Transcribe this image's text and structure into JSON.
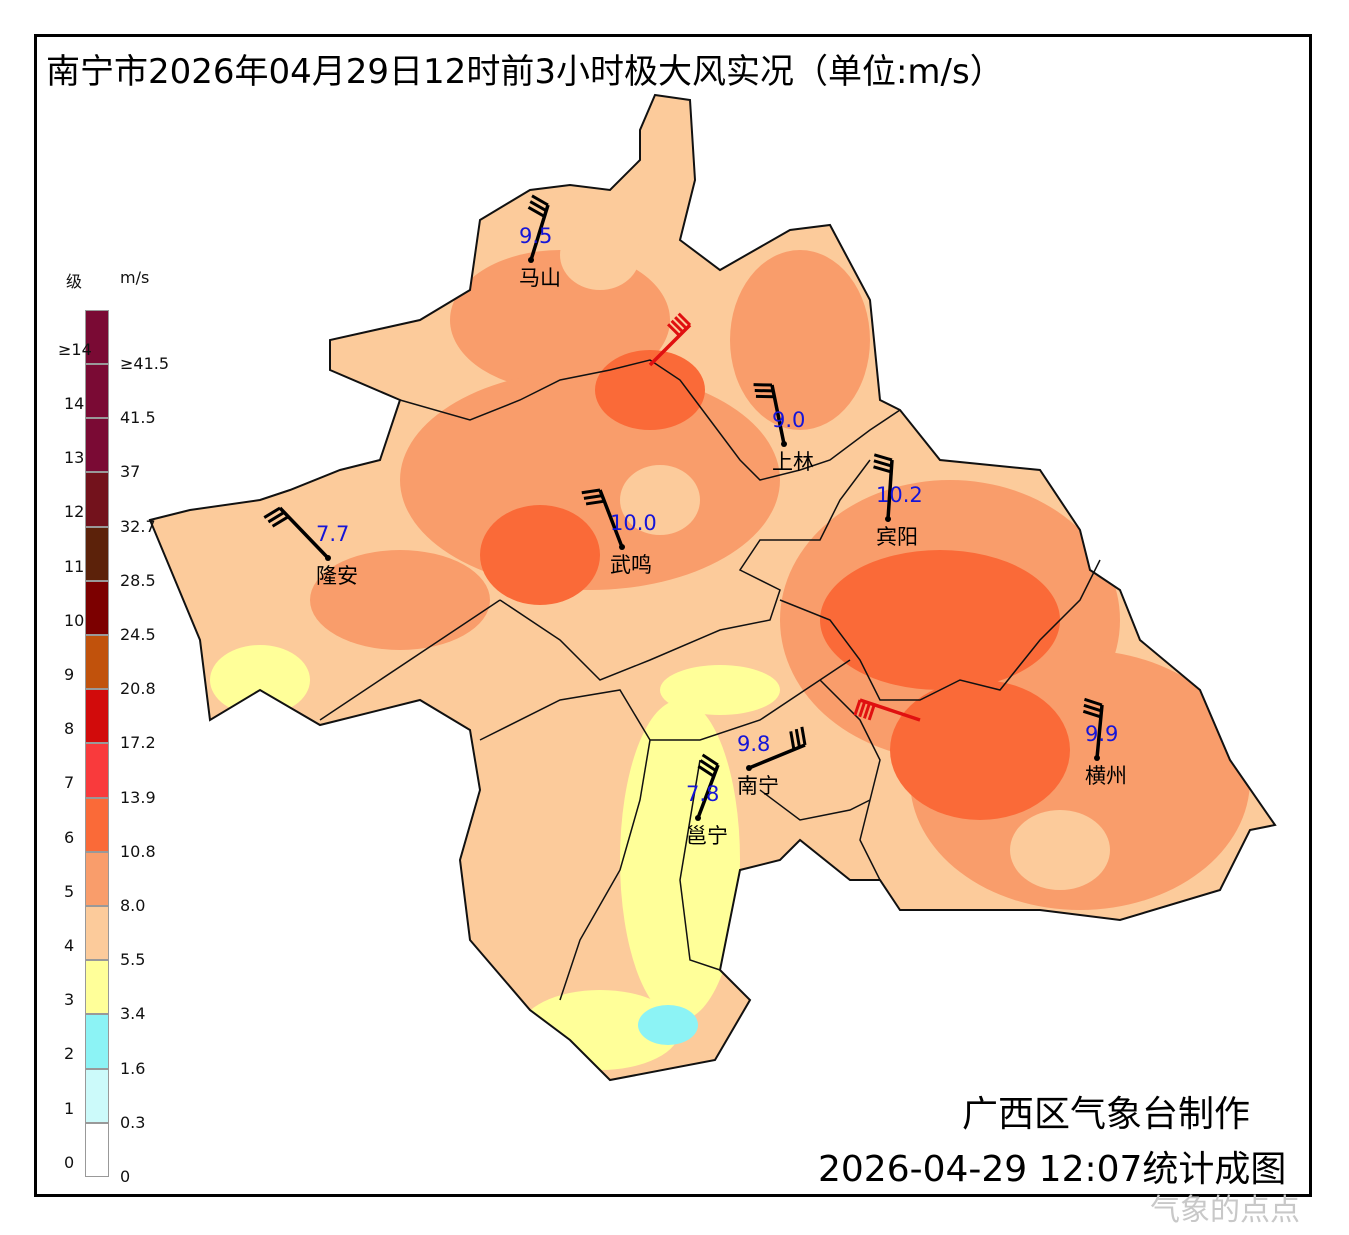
{
  "title": "南宁市2026年04月29日12时前3小时极大风实况（单位:m/s）",
  "legend": {
    "level_header": "级",
    "unit_header": "m/s",
    "levels": [
      "0",
      "1",
      "2",
      "3",
      "4",
      "5",
      "6",
      "7",
      "8",
      "9",
      "10",
      "11",
      "12",
      "13",
      "14",
      "≥14"
    ],
    "speeds": [
      "0",
      "0.3",
      "1.6",
      "3.4",
      "5.5",
      "8.0",
      "10.8",
      "13.9",
      "17.2",
      "20.8",
      "24.5",
      "28.5",
      "32.7",
      "37",
      "41.5",
      "≥41.5"
    ],
    "colors": [
      "#ffffff",
      "#ccfafa",
      "#8cf3f5",
      "#ffff99",
      "#fccb9b",
      "#f99d6b",
      "#fa6a38",
      "#f93a3c",
      "#d20b0b",
      "#c1520c",
      "#7c0000",
      "#5c220a",
      "#73121c",
      "#7a0a34",
      "#7a0a34",
      "#7a0a34"
    ]
  },
  "stations": [
    {
      "name": "马山",
      "value": "9.5"
    },
    {
      "name": "上林",
      "value": "9.0"
    },
    {
      "name": "宾阳",
      "value": "10.2"
    },
    {
      "name": "武鸣",
      "value": "10.0"
    },
    {
      "name": "隆安",
      "value": "7.7"
    },
    {
      "name": "南宁",
      "value": "9.8"
    },
    {
      "name": "邕宁",
      "value": "7.8"
    },
    {
      "name": "横州",
      "value": "9.9"
    }
  ],
  "credit": {
    "org": "广西区气象台制作",
    "time": "2026-04-29 12:07统计成图"
  },
  "watermark": "气象的点点"
}
